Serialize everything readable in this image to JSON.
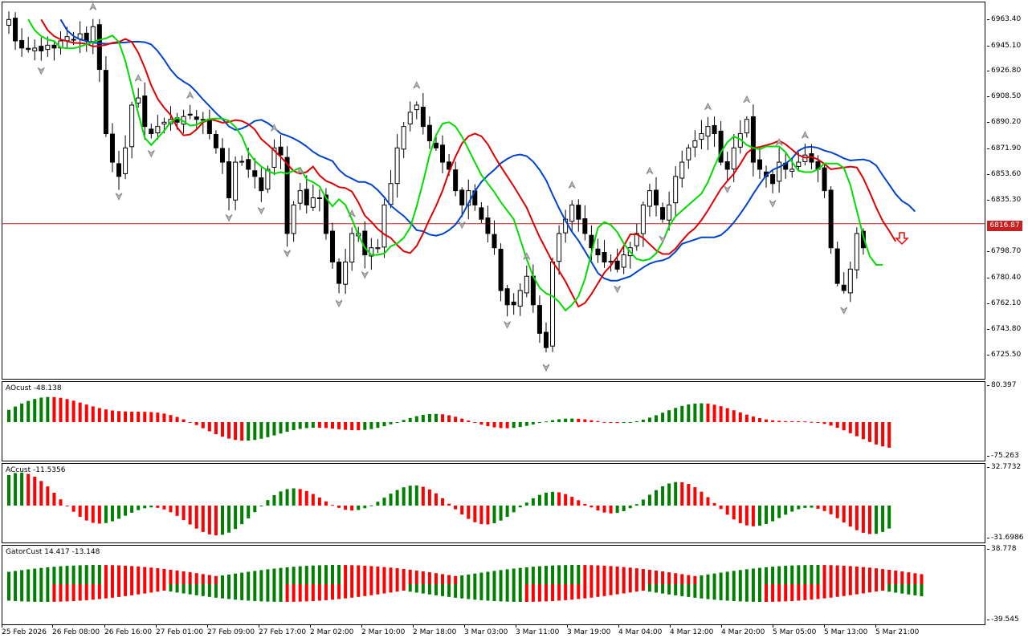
{
  "colors": {
    "up_body": "#ffffff",
    "down_body": "#000000",
    "lips": "#00dd00",
    "teeth": "#e00000",
    "jaw": "#0044cc",
    "bar_up": "#008000",
    "bar_down": "#ff0000",
    "current_price_line": "#c8201e"
  },
  "main": {
    "price_scale": [
      "6963.40",
      "6945.10",
      "6926.80",
      "6908.50",
      "6890.20",
      "6871.90",
      "6853.60",
      "6835.30",
      "6798.70",
      "6780.40",
      "6762.10",
      "6743.80",
      "6725.50"
    ],
    "current_price": "6816.87",
    "signal_arrow": "down-arrow-icon"
  },
  "ao": {
    "label": "AOcust -48.138",
    "scale_top": "80.397",
    "scale_bottom": "-75.263"
  },
  "ac": {
    "label": "ACcust -11.5356",
    "scale_top": "32.7732",
    "scale_bottom": "-31.6986"
  },
  "gator": {
    "label": "GatorCust 14.417 -13.148",
    "scale_top": "38.778",
    "scale_bottom": "-39.545"
  },
  "time_axis": [
    "25 Feb 2026",
    "26 Feb 08:00",
    "26 Feb 16:00",
    "27 Feb 01:00",
    "27 Feb 09:00",
    "27 Feb 17:00",
    "2 Mar 02:00",
    "2 Mar 10:00",
    "2 Mar 18:00",
    "3 Mar 03:00",
    "3 Mar 11:00",
    "3 Mar 19:00",
    "4 Mar 04:00",
    "4 Mar 12:00",
    "4 Mar 20:00",
    "5 Mar 05:00",
    "5 Mar 13:00",
    "5 Mar 21:00"
  ],
  "chart_data": {
    "type": "candlestick",
    "price_range": [
      6707,
      6972
    ],
    "closes": [
      6960,
      6945,
      6940,
      6939,
      6940,
      6938,
      6942,
      6940,
      6945,
      6948,
      6946,
      6950,
      6945,
      6955,
      6925,
      6880,
      6860,
      6850,
      6870,
      6900,
      6905,
      6885,
      6880,
      6885,
      6888,
      6890,
      6888,
      6892,
      6893,
      6890,
      6890,
      6880,
      6870,
      6860,
      6835,
      6860,
      6860,
      6855,
      6850,
      6840,
      6855,
      6870,
      6865,
      6810,
      6830,
      6840,
      6830,
      6835,
      6835,
      6810,
      6790,
      6775,
      6790,
      6810,
      6810,
      6795,
      6800,
      6800,
      6830,
      6845,
      6870,
      6885,
      6895,
      6900,
      6885,
      6875,
      6870,
      6860,
      6855,
      6840,
      6830,
      6840,
      6830,
      6820,
      6810,
      6800,
      6770,
      6760,
      6760,
      6770,
      6780,
      6760,
      6740,
      6730,
      6790,
      6810,
      6820,
      6830,
      6820,
      6810,
      6800,
      6795,
      6790,
      6790,
      6785,
      6795,
      6800,
      6810,
      6830,
      6840,
      6830,
      6820,
      6830,
      6850,
      6860,
      6870,
      6875,
      6880,
      6885,
      6880,
      6860,
      6855,
      6870,
      6880,
      6890,
      6860,
      6855,
      6850,
      6845,
      6860,
      6855,
      6855,
      6860,
      6865,
      6860,
      6855,
      6840,
      6800,
      6775,
      6770,
      6785,
      6810,
      6800
    ]
  }
}
